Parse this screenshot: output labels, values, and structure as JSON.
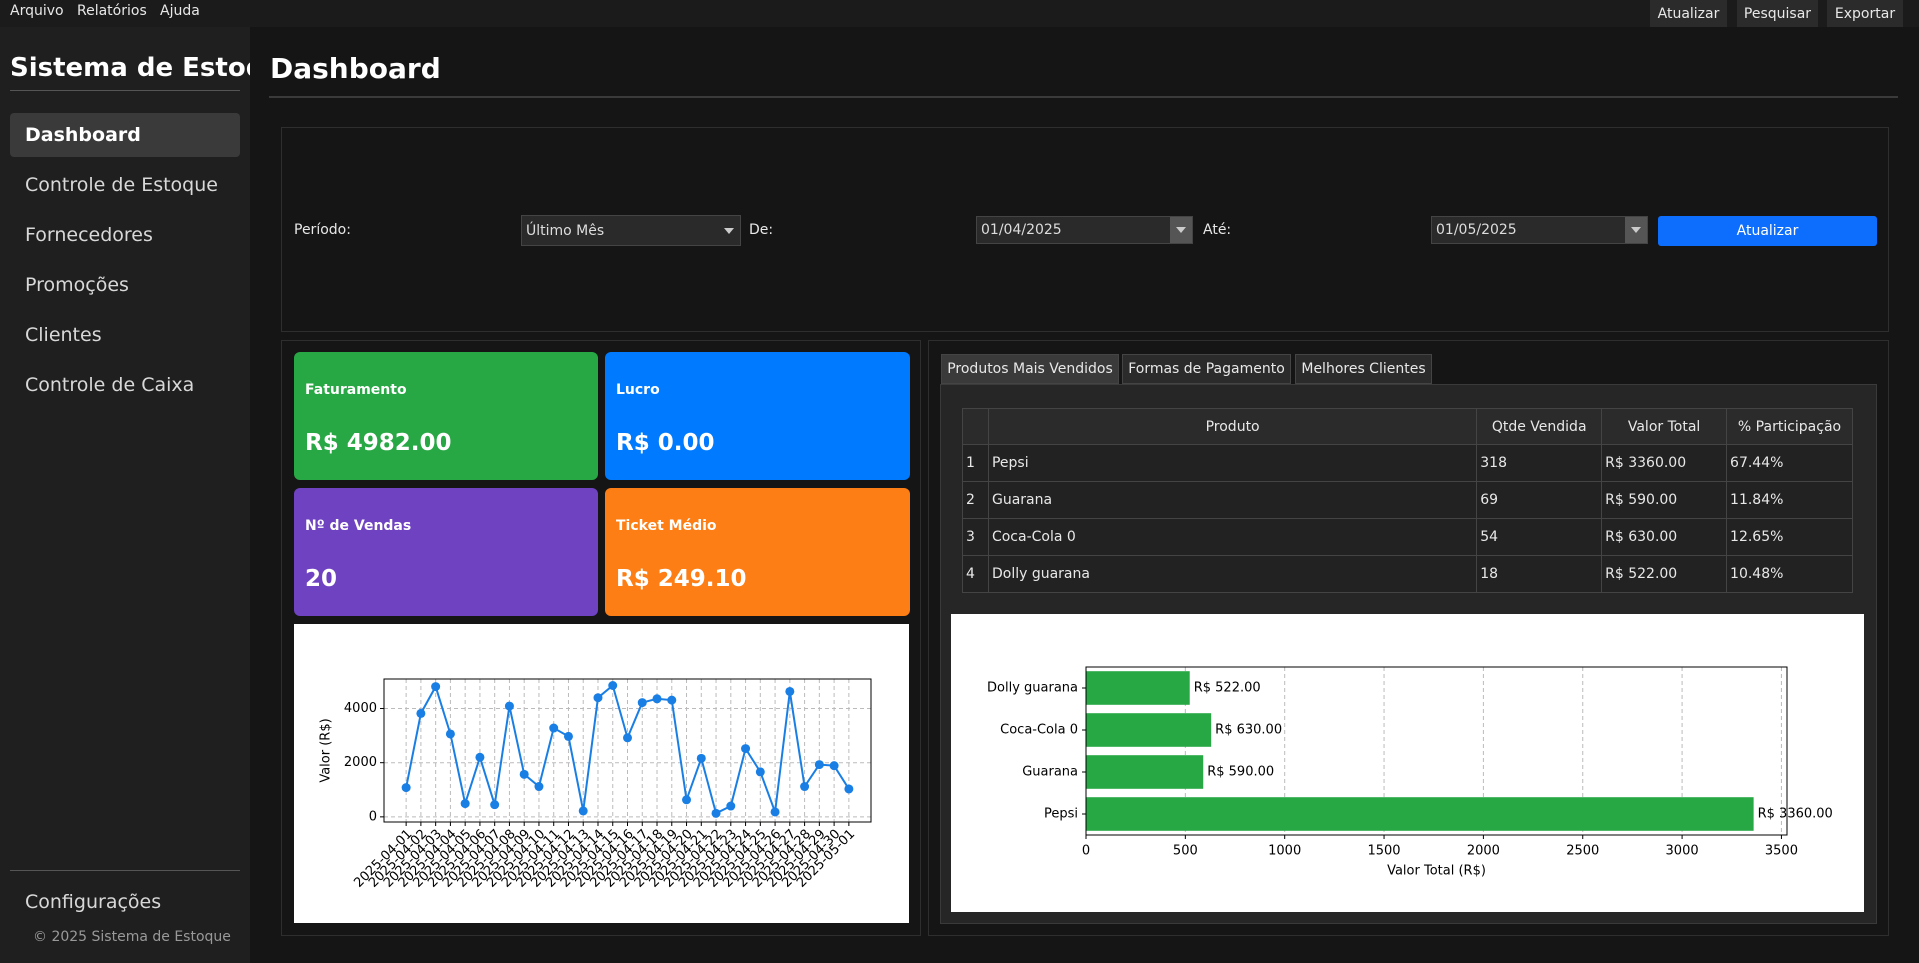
{
  "menu": [
    "Arquivo",
    "Relatórios",
    "Ajuda"
  ],
  "toolbar": [
    "Atualizar",
    "Pesquisar",
    "Exportar"
  ],
  "sidebar": {
    "title": "Sistema de Estoque",
    "items": [
      "Dashboard",
      "Controle de Estoque",
      "Fornecedores",
      "Promoções",
      "Clientes",
      "Controle de Caixa"
    ],
    "settings": "Configurações",
    "footer": "© 2025 Sistema de Estoque"
  },
  "header": {
    "title": "Dashboard"
  },
  "filters": {
    "period_label": "Período:",
    "period": "Último Mês",
    "from_label": "De:",
    "from": "01/04/2025",
    "to_label": "Até:",
    "to": "01/05/2025",
    "button": "Atualizar"
  },
  "cards": [
    {
      "title": "Faturamento",
      "value": "R$ 4982.00"
    },
    {
      "title": "Lucro",
      "value": "R$ 0.00"
    },
    {
      "title": "Nº de Vendas",
      "value": "20"
    },
    {
      "title": "Ticket Médio",
      "value": "R$ 249.10"
    }
  ],
  "tabs": [
    "Produtos Mais Vendidos",
    "Formas de Pagamento",
    "Melhores Clientes"
  ],
  "table": {
    "columns": [
      "Produto",
      "Qtde Vendida",
      "Valor Total",
      "% Participação"
    ],
    "row_headers": [
      "1",
      "2",
      "3",
      "4"
    ],
    "rows": [
      [
        "Pepsi",
        "318",
        "R$ 3360.00",
        "67.44%"
      ],
      [
        "Guarana",
        "69",
        "R$ 590.00",
        "11.84%"
      ],
      [
        "Coca-Cola 0",
        "54",
        "R$ 630.00",
        "12.65%"
      ],
      [
        "Dolly guarana",
        "18",
        "R$ 522.00",
        "10.48%"
      ]
    ]
  },
  "chart_data": [
    {
      "type": "line",
      "ylabel": "Valor (R$)",
      "color": "#1a7fe4",
      "grid": true,
      "categories": [
        "2025-04-01",
        "2025-04-02",
        "2025-04-03",
        "2025-04-04",
        "2025-04-05",
        "2025-04-06",
        "2025-04-07",
        "2025-04-08",
        "2025-04-09",
        "2025-04-10",
        "2025-04-11",
        "2025-04-12",
        "2025-04-13",
        "2025-04-14",
        "2025-04-15",
        "2025-04-16",
        "2025-04-17",
        "2025-04-18",
        "2025-04-19",
        "2025-04-20",
        "2025-04-21",
        "2025-04-22",
        "2025-04-23",
        "2025-04-24",
        "2025-04-25",
        "2025-04-26",
        "2025-04-27",
        "2025-04-28",
        "2025-04-29",
        "2025-04-30",
        "2025-05-01"
      ],
      "values": [
        1080,
        3820,
        4810,
        3060,
        490,
        2200,
        450,
        4090,
        1570,
        1120,
        3280,
        2970,
        220,
        4400,
        4850,
        2920,
        4220,
        4360,
        4310,
        630,
        2160,
        130,
        400,
        2520,
        1660,
        180,
        4630,
        1120,
        1930,
        1890,
        1030
      ],
      "ylim": [
        -190,
        5090
      ],
      "yticks": [
        0,
        2000,
        4000
      ]
    },
    {
      "type": "hbar",
      "xlabel": "Valor Total (R$)",
      "color": "#28a745",
      "grid": true,
      "categories": [
        "Pepsi",
        "Guarana",
        "Coca-Cola 0",
        "Dolly guarana"
      ],
      "values": [
        3360,
        590,
        630,
        522
      ],
      "value_labels": [
        "R$ 3360.00",
        "R$ 590.00",
        "R$ 630.00",
        "R$ 522.00"
      ],
      "xlim": [
        0,
        3528
      ],
      "xticks": [
        0,
        500,
        1000,
        1500,
        2000,
        2500,
        3000,
        3500
      ]
    }
  ]
}
